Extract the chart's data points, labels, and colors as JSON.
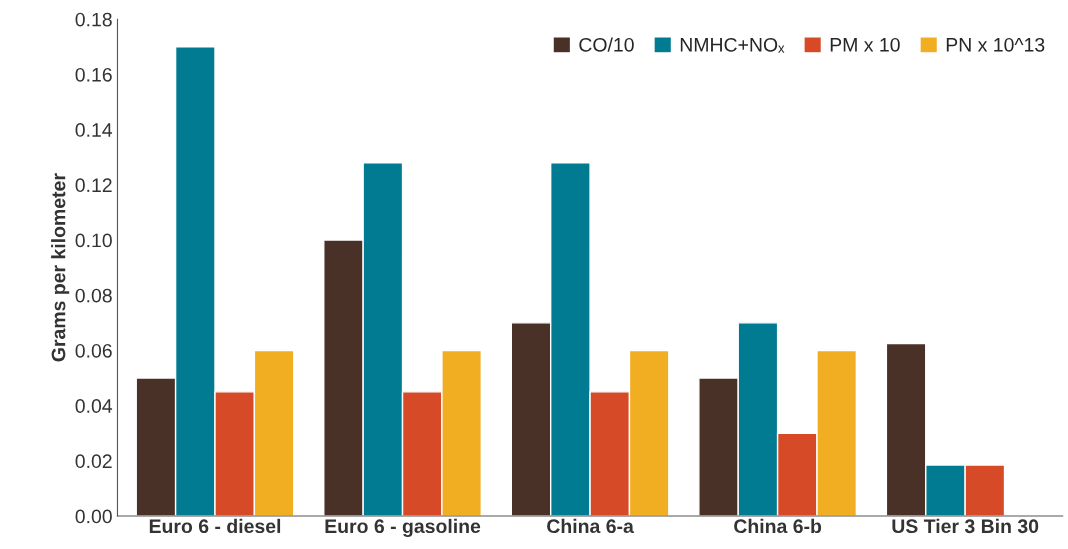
{
  "chart_data": {
    "type": "bar",
    "ylabel": "Grams per kilometer",
    "categories": [
      "Euro 6 - diesel",
      "Euro 6 - gasoline",
      "China 6-a",
      "China 6-b",
      "US Tier 3 Bin 30"
    ],
    "series": [
      {
        "name": "CO/10",
        "color": "#4a3128",
        "values": [
          0.05,
          0.1,
          0.07,
          0.05,
          0.0625
        ]
      },
      {
        "name": "NMHC+NOₓ",
        "color": "#007b92",
        "values": [
          0.17,
          0.128,
          0.128,
          0.07,
          0.0185
        ]
      },
      {
        "name": "PM x 10",
        "color": "#d64a28",
        "values": [
          0.045,
          0.045,
          0.045,
          0.03,
          0.0185
        ]
      },
      {
        "name": "PN x 10^13",
        "color": "#f2ae22",
        "values": [
          0.06,
          0.06,
          0.06,
          0.06,
          null
        ]
      }
    ],
    "ylim": [
      0,
      0.18
    ],
    "yticks": [
      {
        "value": 0,
        "label": "0.00"
      },
      {
        "value": 0.02,
        "label": "0.02"
      },
      {
        "value": 0.04,
        "label": "0.04"
      },
      {
        "value": 0.06,
        "label": "0.06"
      },
      {
        "value": 0.08,
        "label": "0.08"
      },
      {
        "value": 0.1,
        "label": "0.10"
      },
      {
        "value": 0.12,
        "label": "0.12"
      },
      {
        "value": 0.14,
        "label": "0.14"
      },
      {
        "value": 0.16,
        "label": "0.16"
      },
      {
        "value": 0.18,
        "label": "0.18"
      }
    ],
    "grid": false,
    "legend": "top right"
  }
}
